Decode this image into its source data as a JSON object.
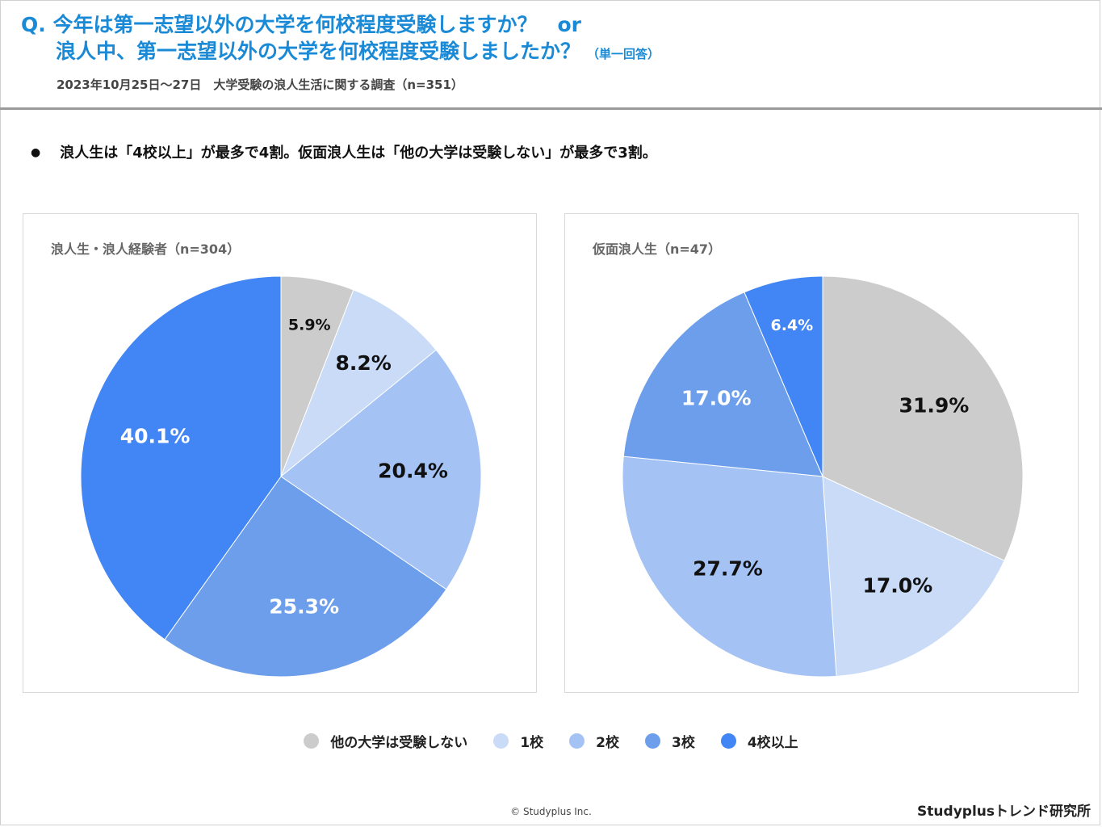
{
  "header": {
    "title_line1": "Q. 今年は第一志望以外の大学を何校程度受験しますか？　or",
    "title_line2": "浪人中、第一志望以外の大学を何校程度受験しましたか？",
    "title_note": "（単一回答）",
    "subtitle": "2023年10月25日～27日　大学受験の浪人生活に関する調査（n=351）",
    "title_color": "#1a8ad6"
  },
  "summary": {
    "bullet": "●",
    "text": "浪人生は「4校以上」が最多で4割。仮面浪人生は「他の大学は受験しない」が最多で3割。"
  },
  "chart_data": [
    {
      "type": "pie",
      "title": "浪人生・浪人経験者（n=304）",
      "categories": [
        "他の大学は受験しない",
        "1校",
        "2校",
        "3校",
        "4校以上"
      ],
      "values": [
        5.9,
        8.2,
        20.4,
        25.3,
        40.1
      ],
      "labels": [
        "5.9%",
        "8.2%",
        "20.4%",
        "25.3%",
        "40.1%"
      ],
      "start": "top",
      "direction": "clockwise"
    },
    {
      "type": "pie",
      "title": "仮面浪人生（n=47）",
      "categories": [
        "他の大学は受験しない",
        "1校",
        "2校",
        "3校",
        "4校以上"
      ],
      "values": [
        31.9,
        17.0,
        27.7,
        17.0,
        6.4
      ],
      "labels": [
        "31.9%",
        "17.0%",
        "27.7%",
        "17.0%",
        "6.4%"
      ],
      "start": "top",
      "direction": "clockwise"
    }
  ],
  "legend": {
    "items": [
      {
        "label": "他の大学は受験しない",
        "color": "#cccccc"
      },
      {
        "label": "1校",
        "color": "#c9dbf7"
      },
      {
        "label": "2校",
        "color": "#a4c2f4"
      },
      {
        "label": "3校",
        "color": "#6d9eeb"
      },
      {
        "label": "4校以上",
        "color": "#4285f4"
      }
    ]
  },
  "slice_label_colors": [
    "#111111",
    "#111111",
    "#111111",
    "#ffffff",
    "#ffffff"
  ],
  "footer": {
    "copyright": "© Studyplus Inc.",
    "brand": "Studyplusトレンド研究所"
  }
}
